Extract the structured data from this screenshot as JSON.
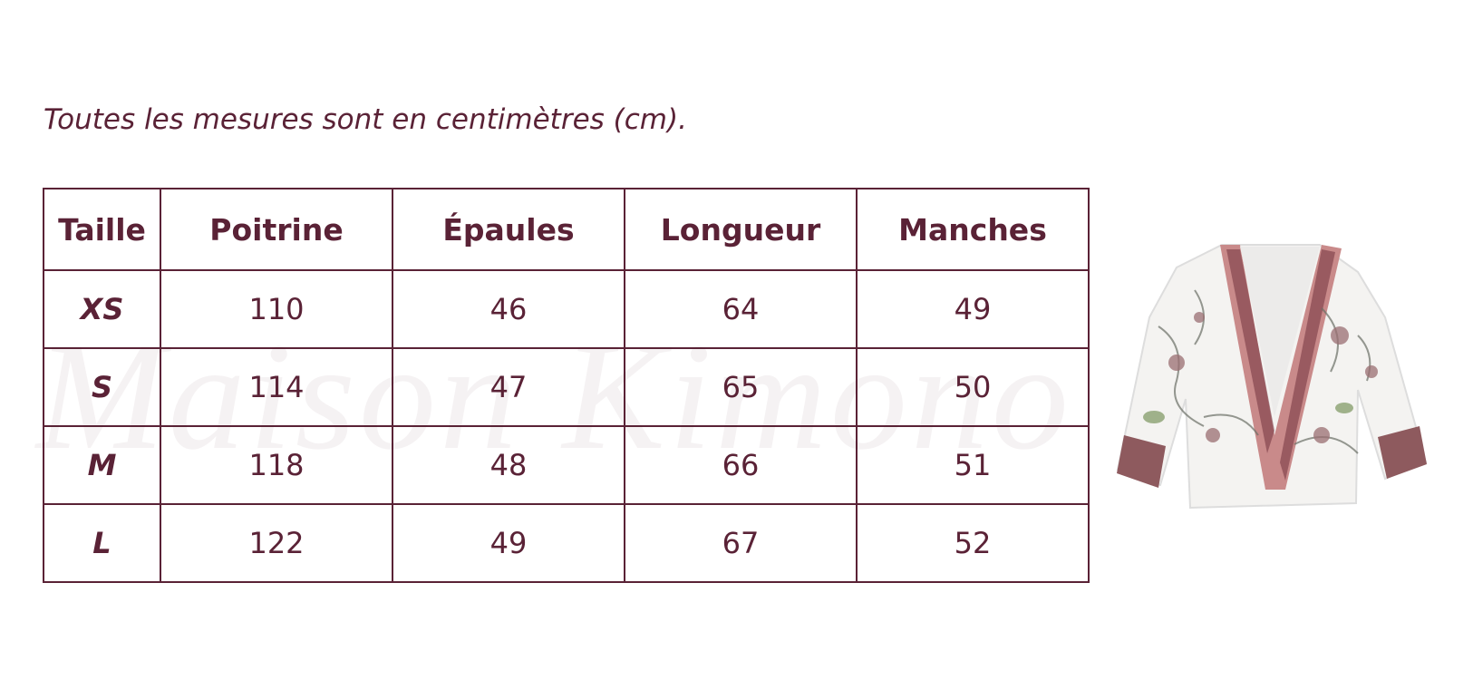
{
  "caption": "Toutes les mesures sont en centimètres (cm).",
  "watermark": "Maison Kimono",
  "table": {
    "header": [
      "Taille",
      "Poitrine",
      "Épaules",
      "Longueur",
      "Manches"
    ],
    "rows": [
      [
        "XS",
        110,
        46,
        64,
        49
      ],
      [
        "S",
        114,
        47,
        65,
        50
      ],
      [
        "M",
        118,
        48,
        66,
        51
      ],
      [
        "L",
        122,
        49,
        67,
        52
      ]
    ]
  }
}
